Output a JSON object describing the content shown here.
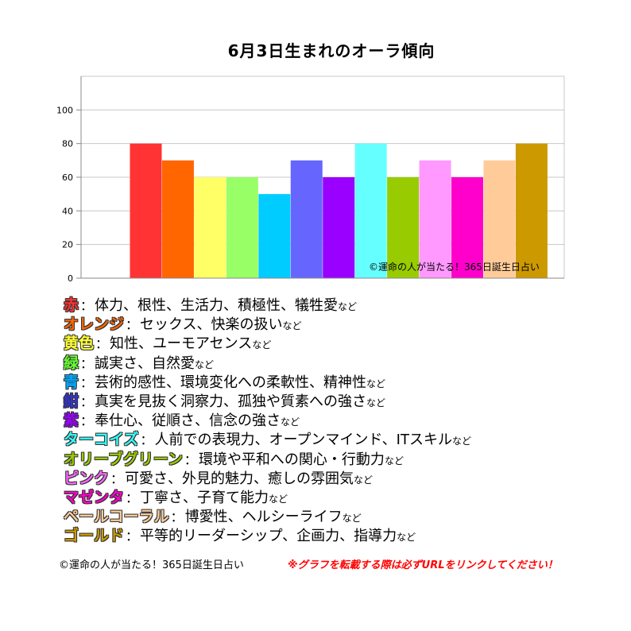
{
  "chart_data": {
    "type": "bar",
    "title": "6月3日生まれのオーラ傾向",
    "categories": [
      "赤",
      "オレンジ",
      "黄色",
      "緑",
      "青",
      "紺",
      "紫",
      "ターコイズ",
      "オリーブグリーン",
      "ピンク",
      "マゼンタ",
      "ペールコーラル",
      "ゴールド"
    ],
    "values": [
      80,
      70,
      60,
      60,
      50,
      70,
      60,
      80,
      60,
      70,
      60,
      70,
      80
    ],
    "colors": [
      "#ff3333",
      "#ff6600",
      "#ffff66",
      "#99ff66",
      "#00ccff",
      "#6666ff",
      "#9900ff",
      "#66ffff",
      "#99cc00",
      "#ff99ff",
      "#ff00cc",
      "#ffcc99",
      "#cc9900"
    ],
    "yticks": [
      0,
      20,
      40,
      60,
      80,
      100
    ],
    "ylim": [
      0,
      120
    ],
    "grid": true,
    "watermark": "©運命の人が当たる！365日誕生日占い"
  },
  "legend": [
    {
      "name": "赤",
      "color": "#ff3333",
      "desc": "体力、根性、生活力、積極性、犠牲愛"
    },
    {
      "name": "オレンジ",
      "color": "#ff6600",
      "desc": "セックス、快楽の扱い"
    },
    {
      "name": "黄色",
      "color": "#ffff33",
      "desc": "知性、ユーモアセンス"
    },
    {
      "name": "緑",
      "color": "#66ff33",
      "desc": "誠実さ、自然愛"
    },
    {
      "name": "青",
      "color": "#00aaff",
      "desc": "芸術的感性、環境変化への柔軟性、精神性"
    },
    {
      "name": "紺",
      "color": "#3333cc",
      "desc": "真実を見抜く洞察力、孤独や質素への強さ"
    },
    {
      "name": "紫",
      "color": "#9900ff",
      "desc": "奉仕心、従順さ、信念の強さ"
    },
    {
      "name": "ターコイズ",
      "color": "#33ffff",
      "desc": "人前での表現力、オープンマインド、ITスキル"
    },
    {
      "name": "オリーブグリーン",
      "color": "#99cc00",
      "desc": "環境や平和への関心・行動力"
    },
    {
      "name": "ピンク",
      "color": "#ff66ff",
      "desc": "可愛さ、外見的魅力、癒しの雰囲気"
    },
    {
      "name": "マゼンタ",
      "color": "#ff00cc",
      "desc": "丁寧さ、子育て能力"
    },
    {
      "name": "ペールコーラル",
      "color": "#ffcc99",
      "desc": "博愛性、ヘルシーライフ"
    },
    {
      "name": "ゴールド",
      "color": "#cc9900",
      "desc": "平等的リーダーシップ、企画力、指導力"
    }
  ],
  "legend_sep": "：",
  "legend_suffix": "など",
  "footer": {
    "copyright": "©運命の人が当たる！365日誕生日占い",
    "notice": "※グラフを転載する際は必ずURLをリンクしてください！"
  }
}
